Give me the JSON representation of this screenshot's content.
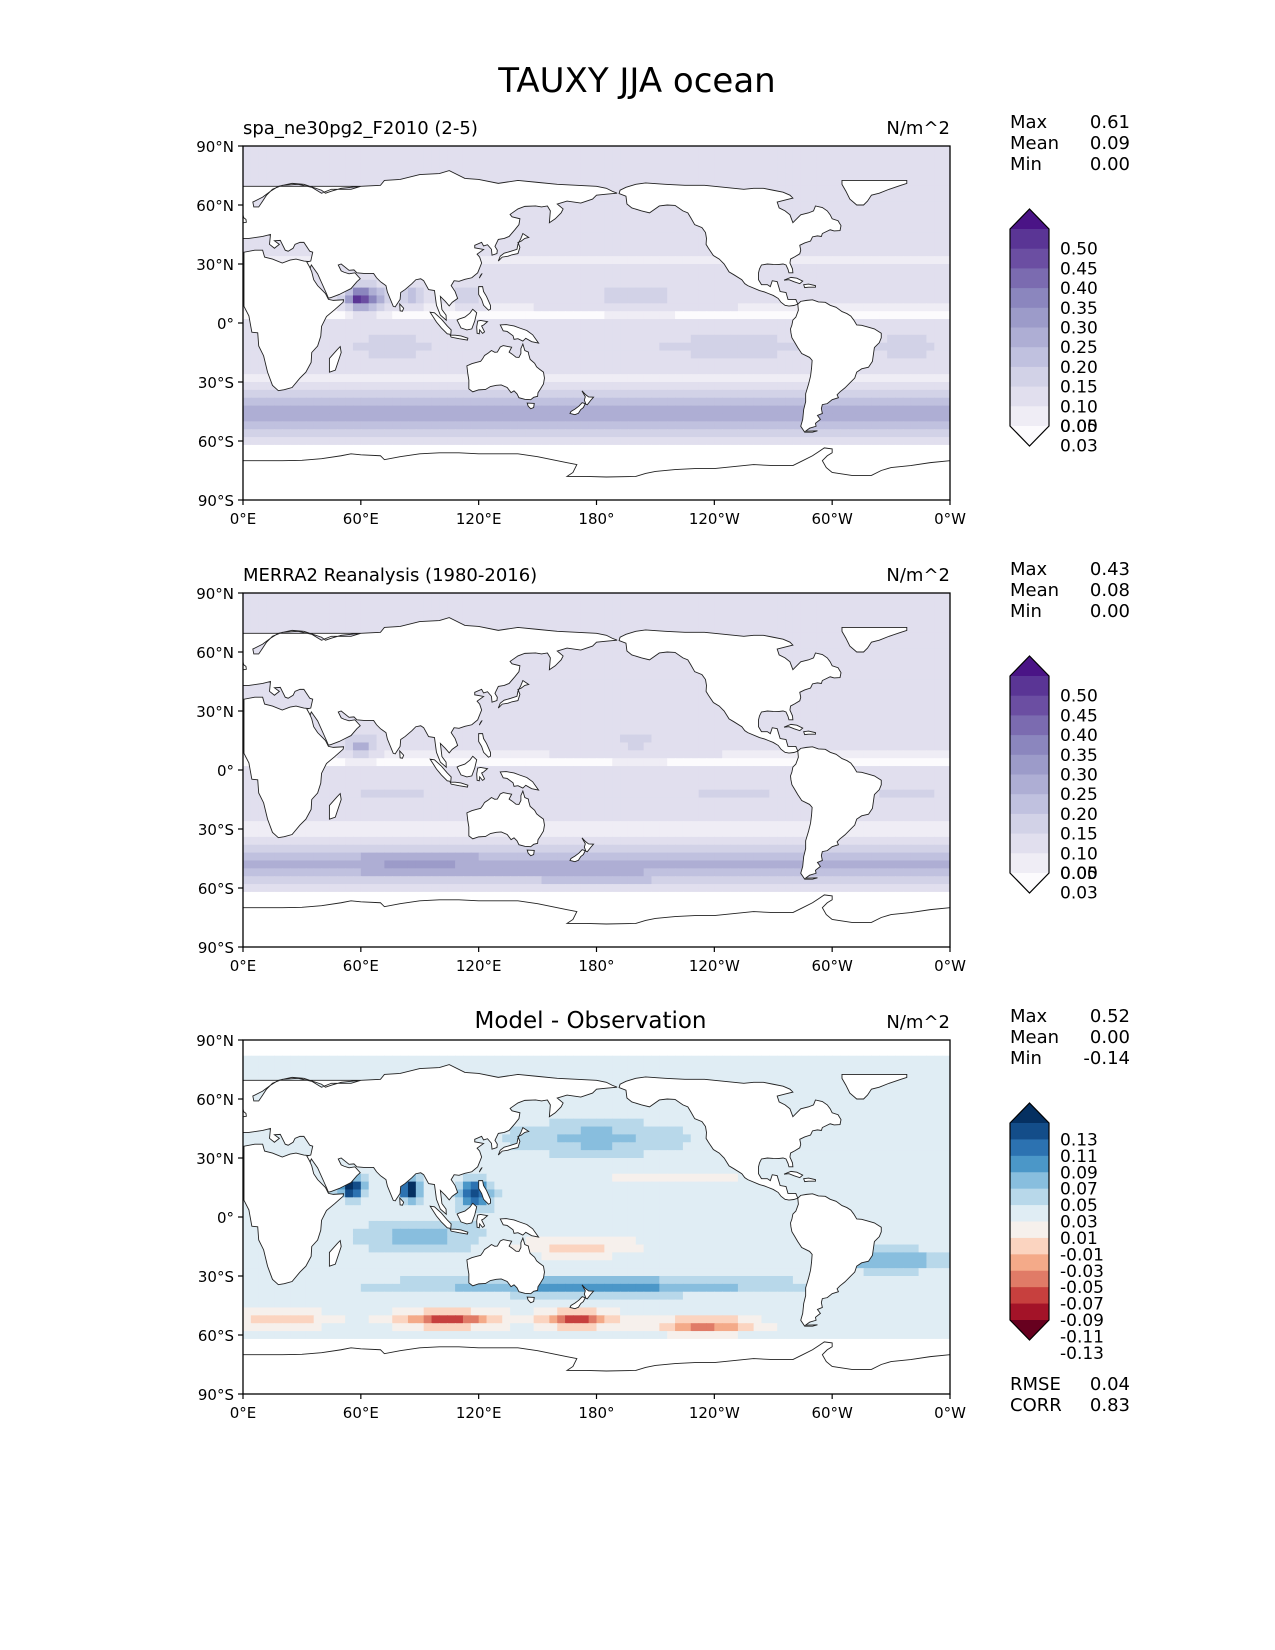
{
  "title": "TAUXY JJA ocean",
  "lat_ticks": [
    "90°N",
    "60°N",
    "30°N",
    "0°",
    "30°S",
    "60°S",
    "90°S"
  ],
  "lon_ticks": [
    "0°E",
    "60°E",
    "120°E",
    "180°",
    "120°W",
    "60°W",
    "0°W"
  ],
  "colors": {
    "purples": [
      "#fcfbfd",
      "#efedf5",
      "#e1dfee",
      "#d2d2e7",
      "#c0c1df",
      "#aeaed4",
      "#9c9bc9",
      "#8b86be",
      "#7b6bb0",
      "#6b4ea2",
      "#5a3595",
      "#4a1486"
    ],
    "rdbu": [
      "#67001f",
      "#a31328",
      "#c7403e",
      "#e07b67",
      "#f4aa89",
      "#fbd4c0",
      "#f6f0ec",
      "#e0edf4",
      "#b8d8ea",
      "#88bede",
      "#4b97c8",
      "#2c72b1",
      "#134d89",
      "#053061"
    ],
    "land": "#ffffff",
    "coast": "#222222"
  },
  "panels": [
    {
      "subtitle": "spa_ne30pg2_F2010 (2-5)",
      "units": "N/m^2",
      "stats": [
        {
          "label": "Max",
          "value": "0.61"
        },
        {
          "label": "Mean",
          "value": "0.09"
        },
        {
          "label": "Min",
          "value": "0.00"
        }
      ],
      "colorbar_labels": [
        "0.50",
        "0.45",
        "0.40",
        "0.35",
        "0.30",
        "0.25",
        "0.20",
        "0.15",
        "0.10",
        "0.05",
        "0.03",
        "0.00"
      ]
    },
    {
      "subtitle": "MERRA2 Reanalysis (1980-2016)",
      "units": "N/m^2",
      "stats": [
        {
          "label": "Max",
          "value": "0.43"
        },
        {
          "label": "Mean",
          "value": "0.08"
        },
        {
          "label": "Min",
          "value": "0.00"
        }
      ],
      "colorbar_labels": [
        "0.50",
        "0.45",
        "0.40",
        "0.35",
        "0.30",
        "0.25",
        "0.20",
        "0.15",
        "0.10",
        "0.05",
        "0.03",
        "0.00"
      ]
    },
    {
      "title": "Model - Observation",
      "units": "N/m^2",
      "stats": [
        {
          "label": "Max",
          "value": "0.52"
        },
        {
          "label": "Mean",
          "value": "0.00"
        },
        {
          "label": "Min",
          "value": "-0.14"
        }
      ],
      "colorbar_labels": [
        "0.13",
        "0.11",
        "0.09",
        "0.07",
        "0.05",
        "0.03",
        "0.01",
        "-0.01",
        "-0.03",
        "-0.05",
        "-0.07",
        "-0.09",
        "-0.11",
        "-0.13"
      ],
      "metrics": [
        {
          "label": "RMSE",
          "value": "0.04"
        },
        {
          "label": "CORR",
          "value": "0.83"
        }
      ]
    }
  ]
}
